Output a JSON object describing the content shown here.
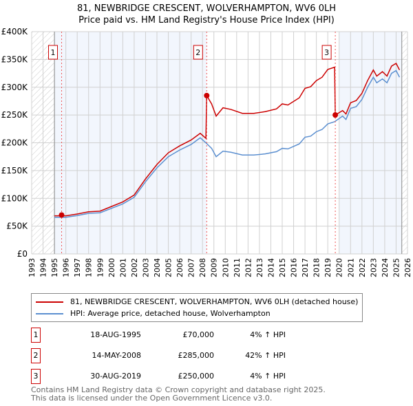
{
  "chart_data": {
    "type": "line",
    "title": "81, NEWBRIDGE CRESCENT, WOLVERHAMPTON, WV6 0LH",
    "subtitle": "Price paid vs. HM Land Registry's House Price Index (HPI)",
    "xlim": [
      1993,
      2026
    ],
    "ylim": [
      0,
      400000
    ],
    "yticks": [
      0,
      50000,
      100000,
      150000,
      200000,
      250000,
      300000,
      350000,
      400000
    ],
    "ytick_labels": [
      "£0",
      "£50K",
      "£100K",
      "£150K",
      "£200K",
      "£250K",
      "£300K",
      "£350K",
      "£400K"
    ],
    "xticks": [
      1993,
      1994,
      1995,
      1996,
      1997,
      1998,
      1999,
      2000,
      2001,
      2002,
      2003,
      2004,
      2005,
      2006,
      2007,
      2008,
      2009,
      2010,
      2011,
      2012,
      2013,
      2014,
      2015,
      2016,
      2017,
      2018,
      2019,
      2020,
      2021,
      2022,
      2023,
      2024,
      2025,
      2026
    ],
    "grid": true,
    "series": [
      {
        "name": "81, NEWBRIDGE CRESCENT, WOLVERHAMPTON, WV6 0LH (detached house)",
        "color": "#cc0000",
        "x": [
          1995,
          1996,
          1997,
          1998,
          1999,
          2000,
          2001,
          2002,
          2003,
          2004,
          2005,
          2006,
          2007,
          2007.8,
          2008.3,
          2008.37,
          2008.8,
          2009.2,
          2009.8,
          2010.5,
          2011.5,
          2012.5,
          2013.5,
          2014.5,
          2015,
          2015.5,
          2016.5,
          2017,
          2017.5,
          2018,
          2018.5,
          2019,
          2019.6,
          2019.66,
          2020.3,
          2020.6,
          2021,
          2021.5,
          2022,
          2022.5,
          2023,
          2023.3,
          2023.8,
          2024.2,
          2024.6,
          2025,
          2025.3
        ],
        "y": [
          68600,
          68600,
          71800,
          75900,
          77000,
          85300,
          93600,
          106000,
          135000,
          161000,
          182000,
          194500,
          205000,
          217000,
          208000,
          285000,
          270000,
          248000,
          263000,
          260000,
          253000,
          253000,
          256000,
          261000,
          270000,
          268000,
          281000,
          298000,
          301000,
          312000,
          318000,
          332000,
          336000,
          250000,
          258000,
          252000,
          272000,
          276000,
          289000,
          312000,
          331000,
          320000,
          328000,
          320000,
          338000,
          343000,
          331000
        ]
      },
      {
        "name": "HPI: Average price, detached house, Wolverhampton",
        "color": "#5b8fd0",
        "x": [
          1995,
          1996,
          1997,
          1998,
          1999,
          2000,
          2001,
          2002,
          2003,
          2004,
          2005,
          2006,
          2007,
          2007.8,
          2008.3,
          2008.8,
          2009.2,
          2009.8,
          2010.5,
          2011.5,
          2012.5,
          2013.5,
          2014.5,
          2015,
          2015.5,
          2016.5,
          2017,
          2017.5,
          2018,
          2018.5,
          2019,
          2019.6,
          2020.3,
          2020.6,
          2021,
          2021.5,
          2022,
          2022.5,
          2023,
          2023.3,
          2023.8,
          2024.2,
          2024.6,
          2025,
          2025.3
        ],
        "y": [
          66000,
          66000,
          69000,
          73000,
          74000,
          82000,
          90000,
          102000,
          130000,
          155000,
          175000,
          187000,
          197000,
          209000,
          200000,
          190000,
          175000,
          185000,
          183000,
          178000,
          178000,
          180000,
          184000,
          190000,
          189000,
          198000,
          210000,
          212000,
          220000,
          224000,
          234000,
          238000,
          248000,
          242000,
          262000,
          265000,
          278000,
          300000,
          318000,
          308000,
          315000,
          308000,
          325000,
          330000,
          318000
        ]
      }
    ],
    "sales": [
      {
        "label": "1",
        "x": 1995.63,
        "price": 70000,
        "date": "18-AUG-1995",
        "price_text": "£70,000",
        "hpi_text": "4% ↑ HPI"
      },
      {
        "label": "2",
        "x": 2008.37,
        "price": 285000,
        "date": "14-MAY-2008",
        "price_text": "£285,000",
        "hpi_text": "42% ↑ HPI"
      },
      {
        "label": "3",
        "x": 2019.66,
        "price": 250000,
        "date": "30-AUG-2019",
        "price_text": "£250,000",
        "hpi_text": "4% ↑ HPI"
      }
    ],
    "legend_position": "below"
  },
  "footer": {
    "line1": "Contains HM Land Registry data © Crown copyright and database right 2025.",
    "line2": "This data is licensed under the Open Government Licence v3.0."
  }
}
